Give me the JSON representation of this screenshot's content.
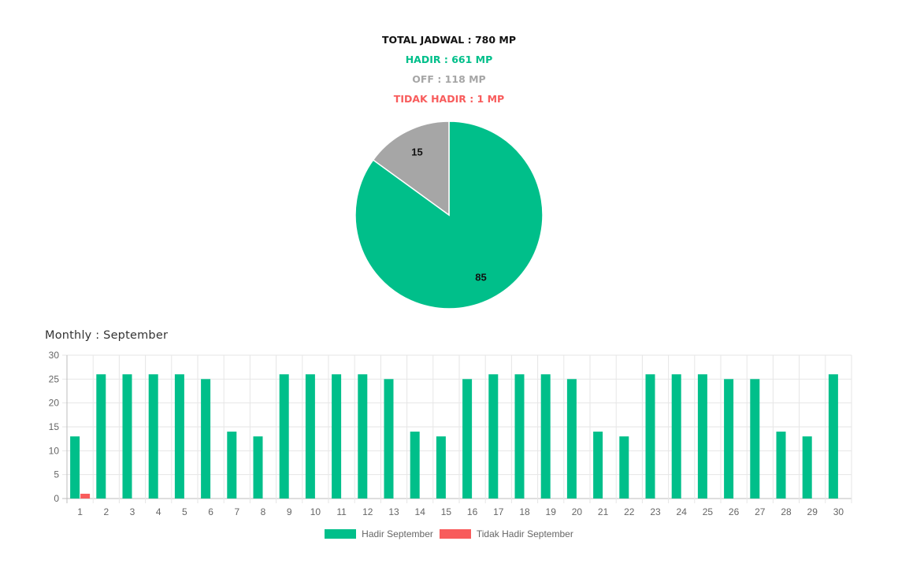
{
  "summary": {
    "total": "TOTAL JADWAL : 780 MP",
    "hadir": "HADIR : 661 MP",
    "off": "OFF : 118 MP",
    "tidak_hadir": "TIDAK HADIR : 1 MP"
  },
  "colors": {
    "hadir": "#00bf8a",
    "off": "#a6a6a6",
    "tidak_hadir": "#f85c5c",
    "total": "#111111",
    "grid": "#e6e6e6",
    "tick": "#666666"
  },
  "monthly_title": "Monthly : September",
  "chart_data": [
    {
      "type": "pie",
      "slices": [
        {
          "label": "85",
          "value": 85,
          "color": "#00bf8a"
        },
        {
          "label": "15",
          "value": 15,
          "color": "#a6a6a6"
        }
      ]
    },
    {
      "type": "bar",
      "categories": [
        "1",
        "2",
        "3",
        "4",
        "5",
        "6",
        "7",
        "8",
        "9",
        "10",
        "11",
        "12",
        "13",
        "14",
        "15",
        "16",
        "17",
        "18",
        "19",
        "20",
        "21",
        "22",
        "23",
        "24",
        "25",
        "26",
        "27",
        "28",
        "29",
        "30"
      ],
      "series": [
        {
          "name": "Hadir September",
          "color": "#00bf8a",
          "values": [
            13,
            26,
            26,
            26,
            26,
            25,
            14,
            13,
            26,
            26,
            26,
            26,
            25,
            14,
            13,
            25,
            26,
            26,
            26,
            25,
            14,
            13,
            26,
            26,
            26,
            25,
            25,
            14,
            13,
            26
          ]
        },
        {
          "name": "Tidak Hadir September",
          "color": "#f85c5c",
          "values": [
            1,
            0,
            0,
            0,
            0,
            0,
            0,
            0,
            0,
            0,
            0,
            0,
            0,
            0,
            0,
            0,
            0,
            0,
            0,
            0,
            0,
            0,
            0,
            0,
            0,
            0,
            0,
            0,
            0,
            0
          ]
        }
      ],
      "ylim": [
        0,
        30
      ],
      "yticks": [
        0,
        5,
        10,
        15,
        20,
        25,
        30
      ],
      "grid": true,
      "legend": "bottom"
    }
  ]
}
